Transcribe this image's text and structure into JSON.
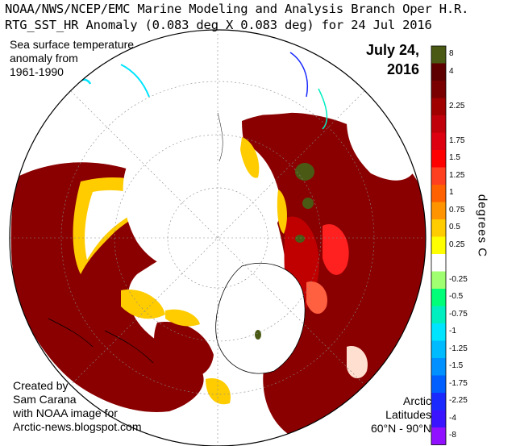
{
  "header": {
    "line1": "NOAA/NWS/NCEP/EMC Marine Modeling and Analysis Branch Oper H.R.",
    "line2": "RTG_SST_HR Anomaly (0.083 deg X 0.083 deg) for 24 Jul 2016"
  },
  "annotations": {
    "top_left": [
      "Sea surface temperature",
      "anomaly from",
      "1961-1990"
    ],
    "date": [
      "July 24,",
      "2016"
    ],
    "credit": [
      "Created by",
      "Sam Carana",
      "with NOAA image for",
      "Arctic-news.blogspot.com"
    ],
    "region": [
      "Arctic",
      "Latitudes",
      "60°N - 90°N"
    ]
  },
  "colorbar": {
    "unit_label": "degrees C",
    "bins": [
      {
        "label": "8",
        "color": "#4a5a14"
      },
      {
        "label": "4",
        "color": "#5e0000"
      },
      {
        "label": "",
        "color": "#7a0000"
      },
      {
        "label": "2.25",
        "color": "#a00000"
      },
      {
        "label": "",
        "color": "#c0000a"
      },
      {
        "label": "1.75",
        "color": "#dc0010"
      },
      {
        "label": "1.5",
        "color": "#ff0000"
      },
      {
        "label": "1.25",
        "color": "#ff4020"
      },
      {
        "label": "1",
        "color": "#ff6000"
      },
      {
        "label": "0.75",
        "color": "#ff9400"
      },
      {
        "label": "0.5",
        "color": "#ffcc00"
      },
      {
        "label": "0.25",
        "color": "#ffff00"
      },
      {
        "label": "",
        "color": "#ffffff"
      },
      {
        "label": "-0.25",
        "color": "#a0ff70"
      },
      {
        "label": "-0.5",
        "color": "#00ff78"
      },
      {
        "label": "-0.75",
        "color": "#00eec0"
      },
      {
        "label": "-1",
        "color": "#00e4ff"
      },
      {
        "label": "-1.25",
        "color": "#00bbff"
      },
      {
        "label": "-1.5",
        "color": "#0090ff"
      },
      {
        "label": "-1.75",
        "color": "#0060ff"
      },
      {
        "label": "-2.25",
        "color": "#1a2aff"
      },
      {
        "label": "-4",
        "color": "#3a14ff"
      },
      {
        "label": "-8",
        "color": "#9010ff"
      }
    ]
  },
  "legend_extra_labels": [],
  "map_colors": {
    "disk_outline": "#000000",
    "ocean_anomaly_high": "#8a0000",
    "ocean_anomaly_mid": "#c00000",
    "ice_zero": "#ffffff",
    "rim_warm": "#ffcc00"
  }
}
